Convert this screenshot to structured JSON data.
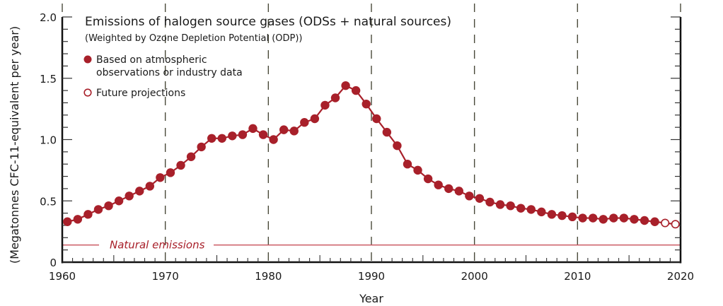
{
  "chart_data": {
    "type": "line",
    "title": "Emissions of halogen source gases (ODSs + natural sources)",
    "subtitle": "(Weighted by Ozone Depletion Potential (ODP))",
    "xlabel": "Year",
    "ylabel": "(Megatonnes CFC-11-equivalent per year)",
    "xlim": [
      1960,
      2020
    ],
    "ylim": [
      0,
      2.0
    ],
    "x_ticks": [
      1960,
      1970,
      1980,
      1990,
      2000,
      2010,
      2020
    ],
    "x_tick_labels": [
      "1960",
      "1970",
      "1980",
      "1990",
      "2000",
      "2010",
      "2020"
    ],
    "y_ticks": [
      0,
      0.5,
      1.0,
      1.5,
      2.0
    ],
    "y_tick_labels": [
      "0",
      "0.5",
      "1.0",
      "1.5",
      "2.0"
    ],
    "gridlines": "vertical dashed at decades",
    "legend_position": "top-left",
    "colors": {
      "series": "#a8202a",
      "natural_line": "#c9515b",
      "grid": "#4a4a3a",
      "axis": "#111111"
    },
    "legend": [
      {
        "label_lines": [
          "Based on atmospheric",
          "observations or industry data"
        ],
        "marker": "filled-circle"
      },
      {
        "label_lines": [
          "Future projections"
        ],
        "marker": "open-circle"
      }
    ],
    "series": [
      {
        "name": "Based on atmospheric observations or industry data",
        "marker": "filled",
        "x": [
          1960,
          1961,
          1962,
          1963,
          1964,
          1965,
          1966,
          1967,
          1968,
          1969,
          1970,
          1971,
          1972,
          1973,
          1974,
          1975,
          1976,
          1977,
          1978,
          1979,
          1980,
          1981,
          1982,
          1983,
          1984,
          1985,
          1986,
          1987,
          1988,
          1989,
          1990,
          1991,
          1992,
          1993,
          1994,
          1995,
          1996,
          1997,
          1998,
          1999,
          2000,
          2001,
          2002,
          2003,
          2004,
          2005,
          2006,
          2007,
          2008,
          2009,
          2010,
          2011,
          2012,
          2013,
          2014,
          2015,
          2016,
          2017
        ],
        "values": [
          0.33,
          0.35,
          0.39,
          0.43,
          0.46,
          0.5,
          0.54,
          0.58,
          0.62,
          0.69,
          0.73,
          0.79,
          0.86,
          0.94,
          1.01,
          1.01,
          1.03,
          1.04,
          1.09,
          1.04,
          1.0,
          1.08,
          1.07,
          1.14,
          1.17,
          1.28,
          1.34,
          1.44,
          1.4,
          1.29,
          1.17,
          1.06,
          0.95,
          0.8,
          0.75,
          0.68,
          0.63,
          0.6,
          0.58,
          0.54,
          0.52,
          0.49,
          0.47,
          0.46,
          0.44,
          0.43,
          0.41,
          0.39,
          0.38,
          0.37,
          0.36,
          0.36,
          0.35,
          0.36,
          0.36,
          0.35,
          0.34,
          0.33
        ]
      },
      {
        "name": "Future projections",
        "marker": "open",
        "x": [
          2018,
          2019
        ],
        "values": [
          0.32,
          0.31
        ]
      }
    ],
    "annotations": [
      {
        "text": "Natural emissions",
        "type": "horizontal-line",
        "value": 0.14
      }
    ]
  }
}
